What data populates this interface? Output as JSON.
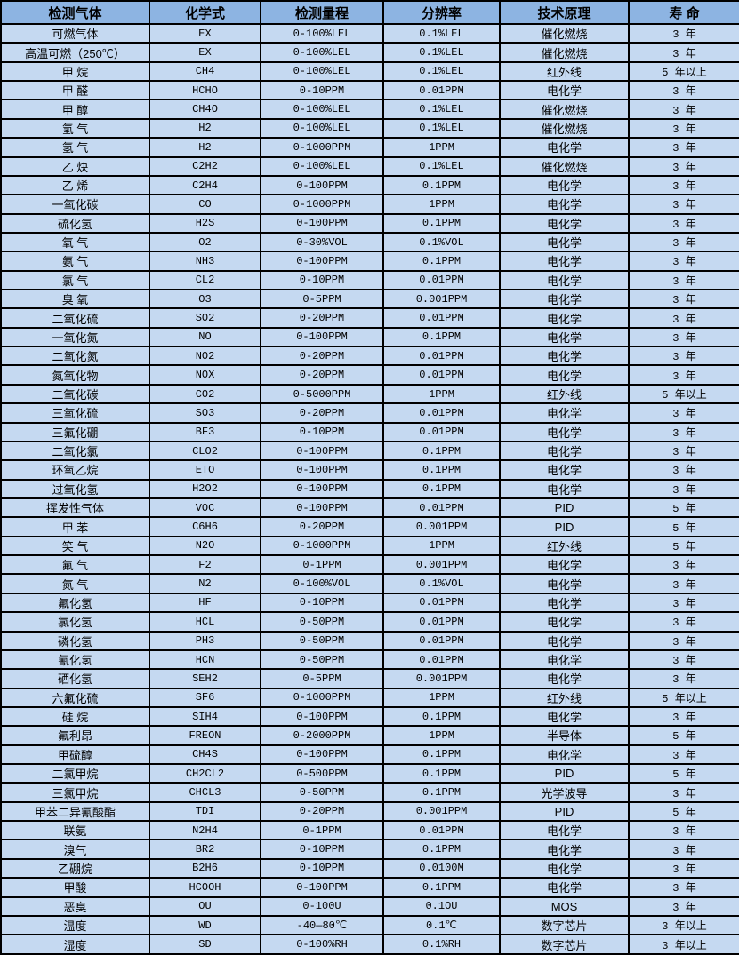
{
  "colors": {
    "header_bg": "#8db4e2",
    "row_bg": "#c5d9f1",
    "border": "#000000"
  },
  "table": {
    "headers": [
      "检测气体",
      "化学式",
      "检测量程",
      "分辨率",
      "技术原理",
      "寿  命"
    ],
    "rows": [
      [
        "可燃气体",
        "EX",
        "0-100%LEL",
        "0.1%LEL",
        "催化燃烧",
        "3 年"
      ],
      [
        "高温可燃（250℃）",
        "EX",
        "0-100%LEL",
        "0.1%LEL",
        "催化燃烧",
        "3 年"
      ],
      [
        "甲  烷",
        "CH4",
        "0-100%LEL",
        "0.1%LEL",
        "红外线",
        "5 年以上"
      ],
      [
        "甲  醛",
        "HCHO",
        "0-10PPM",
        "0.01PPM",
        "电化学",
        "3 年"
      ],
      [
        "甲  醇",
        "CH4O",
        "0-100%LEL",
        "0.1%LEL",
        "催化燃烧",
        "3 年"
      ],
      [
        "氢  气",
        "H2",
        "0-100%LEL",
        "0.1%LEL",
        "催化燃烧",
        "3 年"
      ],
      [
        "氢  气",
        "H2",
        "0-1000PPM",
        "1PPM",
        "电化学",
        "3 年"
      ],
      [
        "乙  炔",
        "C2H2",
        "0-100%LEL",
        "0.1%LEL",
        "催化燃烧",
        "3 年"
      ],
      [
        "乙  烯",
        "C2H4",
        "0-100PPM",
        "0.1PPM",
        "电化学",
        "3 年"
      ],
      [
        "一氧化碳",
        "CO",
        "0-1000PPM",
        "1PPM",
        "电化学",
        "3 年"
      ],
      [
        "硫化氢",
        "H2S",
        "0-100PPM",
        "0.1PPM",
        "电化学",
        "3 年"
      ],
      [
        "氧  气",
        "O2",
        "0-30%VOL",
        "0.1%VOL",
        "电化学",
        "3 年"
      ],
      [
        "氨  气",
        "NH3",
        "0-100PPM",
        "0.1PPM",
        "电化学",
        "3 年"
      ],
      [
        "氯  气",
        "CL2",
        "0-10PPM",
        "0.01PPM",
        "电化学",
        "3 年"
      ],
      [
        "臭  氧",
        "O3",
        "0-5PPM",
        "0.001PPM",
        "电化学",
        "3 年"
      ],
      [
        "二氧化硫",
        "SO2",
        "0-20PPM",
        "0.01PPM",
        "电化学",
        "3 年"
      ],
      [
        "一氧化氮",
        "NO",
        "0-100PPM",
        "0.1PPM",
        "电化学",
        "3 年"
      ],
      [
        "二氧化氮",
        "NO2",
        "0-20PPM",
        "0.01PPM",
        "电化学",
        "3 年"
      ],
      [
        "氮氧化物",
        "NOX",
        "0-20PPM",
        "0.01PPM",
        "电化学",
        "3 年"
      ],
      [
        "二氧化碳",
        "CO2",
        "0-5000PPM",
        "1PPM",
        "红外线",
        "5 年以上"
      ],
      [
        "三氧化硫",
        "SO3",
        "0-20PPM",
        "0.01PPM",
        "电化学",
        "3 年"
      ],
      [
        "三氟化硼",
        "BF3",
        "0-10PPM",
        "0.01PPM",
        "电化学",
        "3 年"
      ],
      [
        "二氧化氯",
        "CLO2",
        "0-100PPM",
        "0.1PPM",
        "电化学",
        "3 年"
      ],
      [
        "环氧乙烷",
        "ETO",
        "0-100PPM",
        "0.1PPM",
        "电化学",
        "3 年"
      ],
      [
        "过氧化氢",
        "H2O2",
        "0-100PPM",
        "0.1PPM",
        "电化学",
        "3 年"
      ],
      [
        "挥发性气体",
        "VOC",
        "0-100PPM",
        "0.01PPM",
        "PID",
        "5 年"
      ],
      [
        "甲  苯",
        "C6H6",
        "0-20PPM",
        "0.001PPM",
        "PID",
        "5 年"
      ],
      [
        "笑  气",
        "N2O",
        "0-1000PPM",
        "1PPM",
        "红外线",
        "5 年"
      ],
      [
        "氟  气",
        "F2",
        "0-1PPM",
        "0.001PPM",
        "电化学",
        "3 年"
      ],
      [
        "氮  气",
        "N2",
        "0-100%VOL",
        "0.1%VOL",
        "电化学",
        "3 年"
      ],
      [
        "氟化氢",
        "HF",
        "0-10PPM",
        "0.01PPM",
        "电化学",
        "3 年"
      ],
      [
        "氯化氢",
        "HCL",
        "0-50PPM",
        "0.01PPM",
        "电化学",
        "3 年"
      ],
      [
        "磷化氢",
        "PH3",
        "0-50PPM",
        "0.01PPM",
        "电化学",
        "3 年"
      ],
      [
        "氰化氢",
        "HCN",
        "0-50PPM",
        "0.01PPM",
        "电化学",
        "3 年"
      ],
      [
        "硒化氢",
        "SEH2",
        "0-5PPM",
        "0.001PPM",
        "电化学",
        "3 年"
      ],
      [
        "六氟化硫",
        "SF6",
        "0-1000PPM",
        "1PPM",
        "红外线",
        "5 年以上"
      ],
      [
        "硅  烷",
        "SIH4",
        "0-100PPM",
        "0.1PPM",
        "电化学",
        "3 年"
      ],
      [
        "氟利昂",
        "FREON",
        "0-2000PPM",
        "1PPM",
        "半导体",
        "5 年"
      ],
      [
        "甲硫醇",
        "CH4S",
        "0-100PPM",
        "0.1PPM",
        "电化学",
        "3 年"
      ],
      [
        "二氯甲烷",
        "CH2CL2",
        "0-500PPM",
        "0.1PPM",
        "PID",
        "5 年"
      ],
      [
        "三氯甲烷",
        "CHCL3",
        "0-50PPM",
        "0.1PPM",
        "光学波导",
        "3 年"
      ],
      [
        "甲苯二异氰酸酯",
        "TDI",
        "0-20PPM",
        "0.001PPM",
        "PID",
        "5 年"
      ],
      [
        "联氨",
        "N2H4",
        "0-1PPM",
        "0.01PPM",
        "电化学",
        "3 年"
      ],
      [
        "溴气",
        "BR2",
        "0-10PPM",
        "0.1PPM",
        "电化学",
        "3 年"
      ],
      [
        "乙硼烷",
        "B2H6",
        "0-10PPM",
        "0.0100M",
        "电化学",
        "3 年"
      ],
      [
        "甲酸",
        "HCOOH",
        "0-100PPM",
        "0.1PPM",
        "电化学",
        "3 年"
      ],
      [
        "恶臭",
        "OU",
        "0-100U",
        "0.1OU",
        "MOS",
        "3 年"
      ],
      [
        "温度",
        "WD",
        "-40—80℃",
        "0.1℃",
        "数字芯片",
        "3 年以上"
      ],
      [
        "湿度",
        "SD",
        "0-100%RH",
        "0.1%RH",
        "数字芯片",
        "3 年以上"
      ]
    ]
  }
}
